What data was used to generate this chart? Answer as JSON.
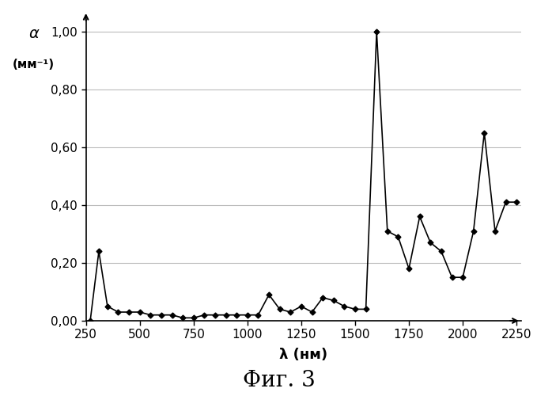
{
  "x": [
    270,
    310,
    350,
    400,
    450,
    500,
    550,
    600,
    650,
    700,
    750,
    800,
    850,
    900,
    950,
    1000,
    1050,
    1100,
    1150,
    1200,
    1250,
    1300,
    1350,
    1400,
    1450,
    1500,
    1550,
    1600,
    1650,
    1700,
    1750,
    1800,
    1850,
    1900,
    1950,
    2000,
    2050,
    2100,
    2150,
    2200,
    2250
  ],
  "y": [
    0.0,
    0.24,
    0.05,
    0.03,
    0.03,
    0.03,
    0.02,
    0.02,
    0.02,
    0.01,
    0.01,
    0.02,
    0.02,
    0.02,
    0.02,
    0.02,
    0.02,
    0.09,
    0.04,
    0.03,
    0.05,
    0.03,
    0.08,
    0.07,
    0.05,
    0.04,
    0.04,
    1.0,
    0.31,
    0.29,
    0.18,
    0.36,
    0.27,
    0.24,
    0.15,
    0.15,
    0.31,
    0.65,
    0.31,
    0.41,
    0.41
  ],
  "title": "Фиг. 3",
  "xlabel": "λ (нм)",
  "ylabel_line1": "α",
  "ylabel_line2": "(мм⁻¹)",
  "xlim": [
    250,
    2270
  ],
  "ylim": [
    0.0,
    1.04
  ],
  "xticks": [
    250,
    500,
    750,
    1000,
    1250,
    1500,
    1750,
    2000,
    2250
  ],
  "yticks": [
    0.0,
    0.2,
    0.4,
    0.6,
    0.8,
    1.0
  ],
  "line_color": "#000000",
  "marker": "D",
  "marker_size": 3.5,
  "bg_color": "#ffffff",
  "grid_color": "#bbbbbb",
  "title_fontsize": 20,
  "axis_label_fontsize": 13,
  "tick_fontsize": 11
}
